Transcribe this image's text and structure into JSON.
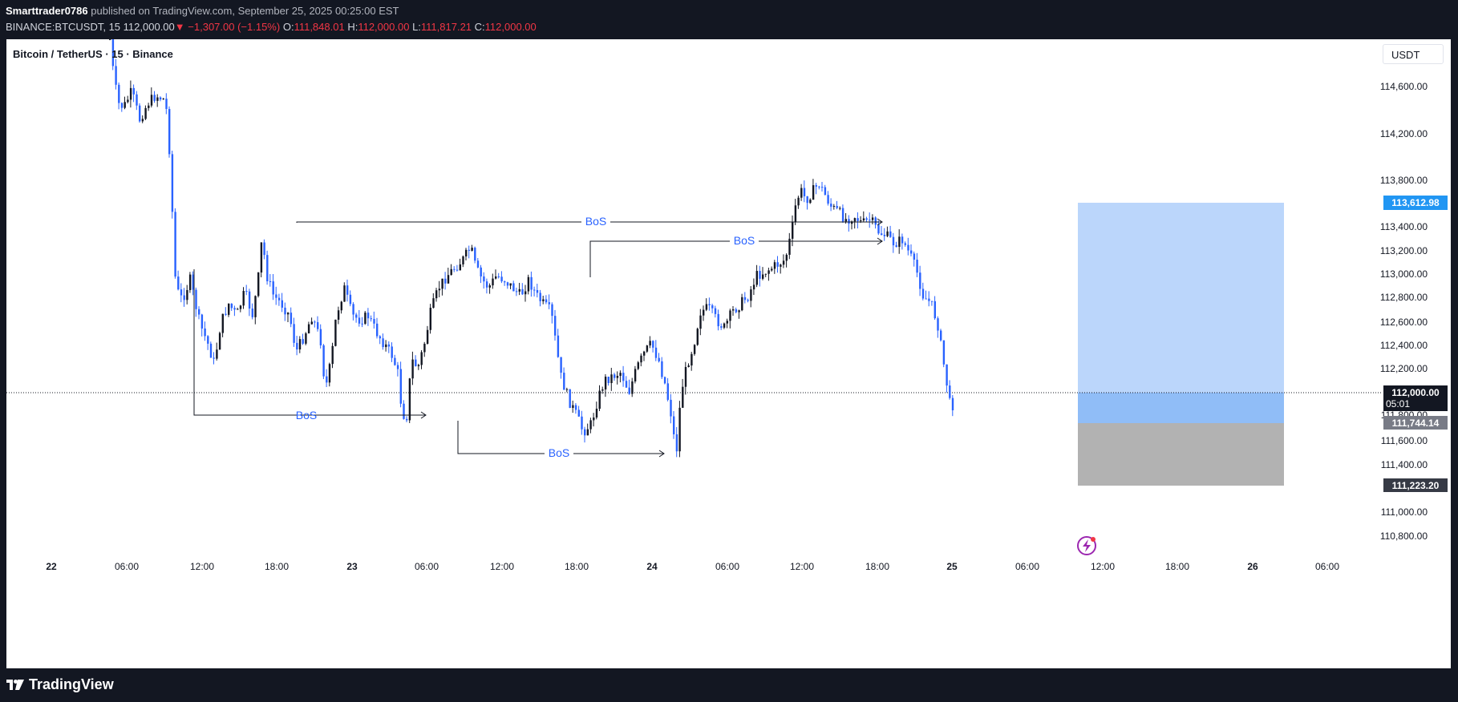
{
  "header": {
    "author": "Smarttrader0786",
    "published_text": "published on TradingView.com, September 25, 2025 00:25:00 EST",
    "symbol": "BINANCE:BTCUSDT, 15",
    "last_price": "112,000.00",
    "change": "−1,307.00 (−1.15%)",
    "change_arrow": "▼",
    "open_label": "O:",
    "open": "111,848.01",
    "high_label": "H:",
    "high": "112,000.00",
    "low_label": "L:",
    "low": "111,817.21",
    "close_label": "C:",
    "close": "112,000.00"
  },
  "chart": {
    "legend_title": "Bitcoin / TetherUS · 15 · Binance",
    "currency": "USDT",
    "price_axis_ticks": [
      "114,600.00",
      "114,200.00",
      "113,800.00",
      "113,400.00",
      "113,200.00",
      "113,000.00",
      "112,800.00",
      "112,600.00",
      "112,400.00",
      "112,200.00",
      "111,600.00",
      "111,400.00",
      "111,000.00",
      "110,800.00"
    ],
    "time_axis_ticks": [
      "22",
      "06:00",
      "12:00",
      "18:00",
      "23",
      "06:00",
      "12:00",
      "18:00",
      "24",
      "06:00",
      "12:00",
      "18:00",
      "25",
      "06:00",
      "12:00",
      "18:00",
      "26",
      "06:00"
    ],
    "price_labels": {
      "target": "113,612.98",
      "current": "112,000.00",
      "countdown": "05:01",
      "entry": "111,744.14",
      "stop": "111,223.20",
      "partial": "111,800.00"
    },
    "annotations": [
      "BoS",
      "BoS",
      "BoS",
      "BoS"
    ],
    "colors": {
      "bullish": "#131722",
      "bearish": "#2962ff",
      "profit_zone": "#bbd6fb",
      "loss_zone": "#b2b2b2",
      "target_tag": "#2196f3",
      "stop_tag": "#363a45"
    }
  },
  "footer": {
    "brand": "TradingView"
  }
}
